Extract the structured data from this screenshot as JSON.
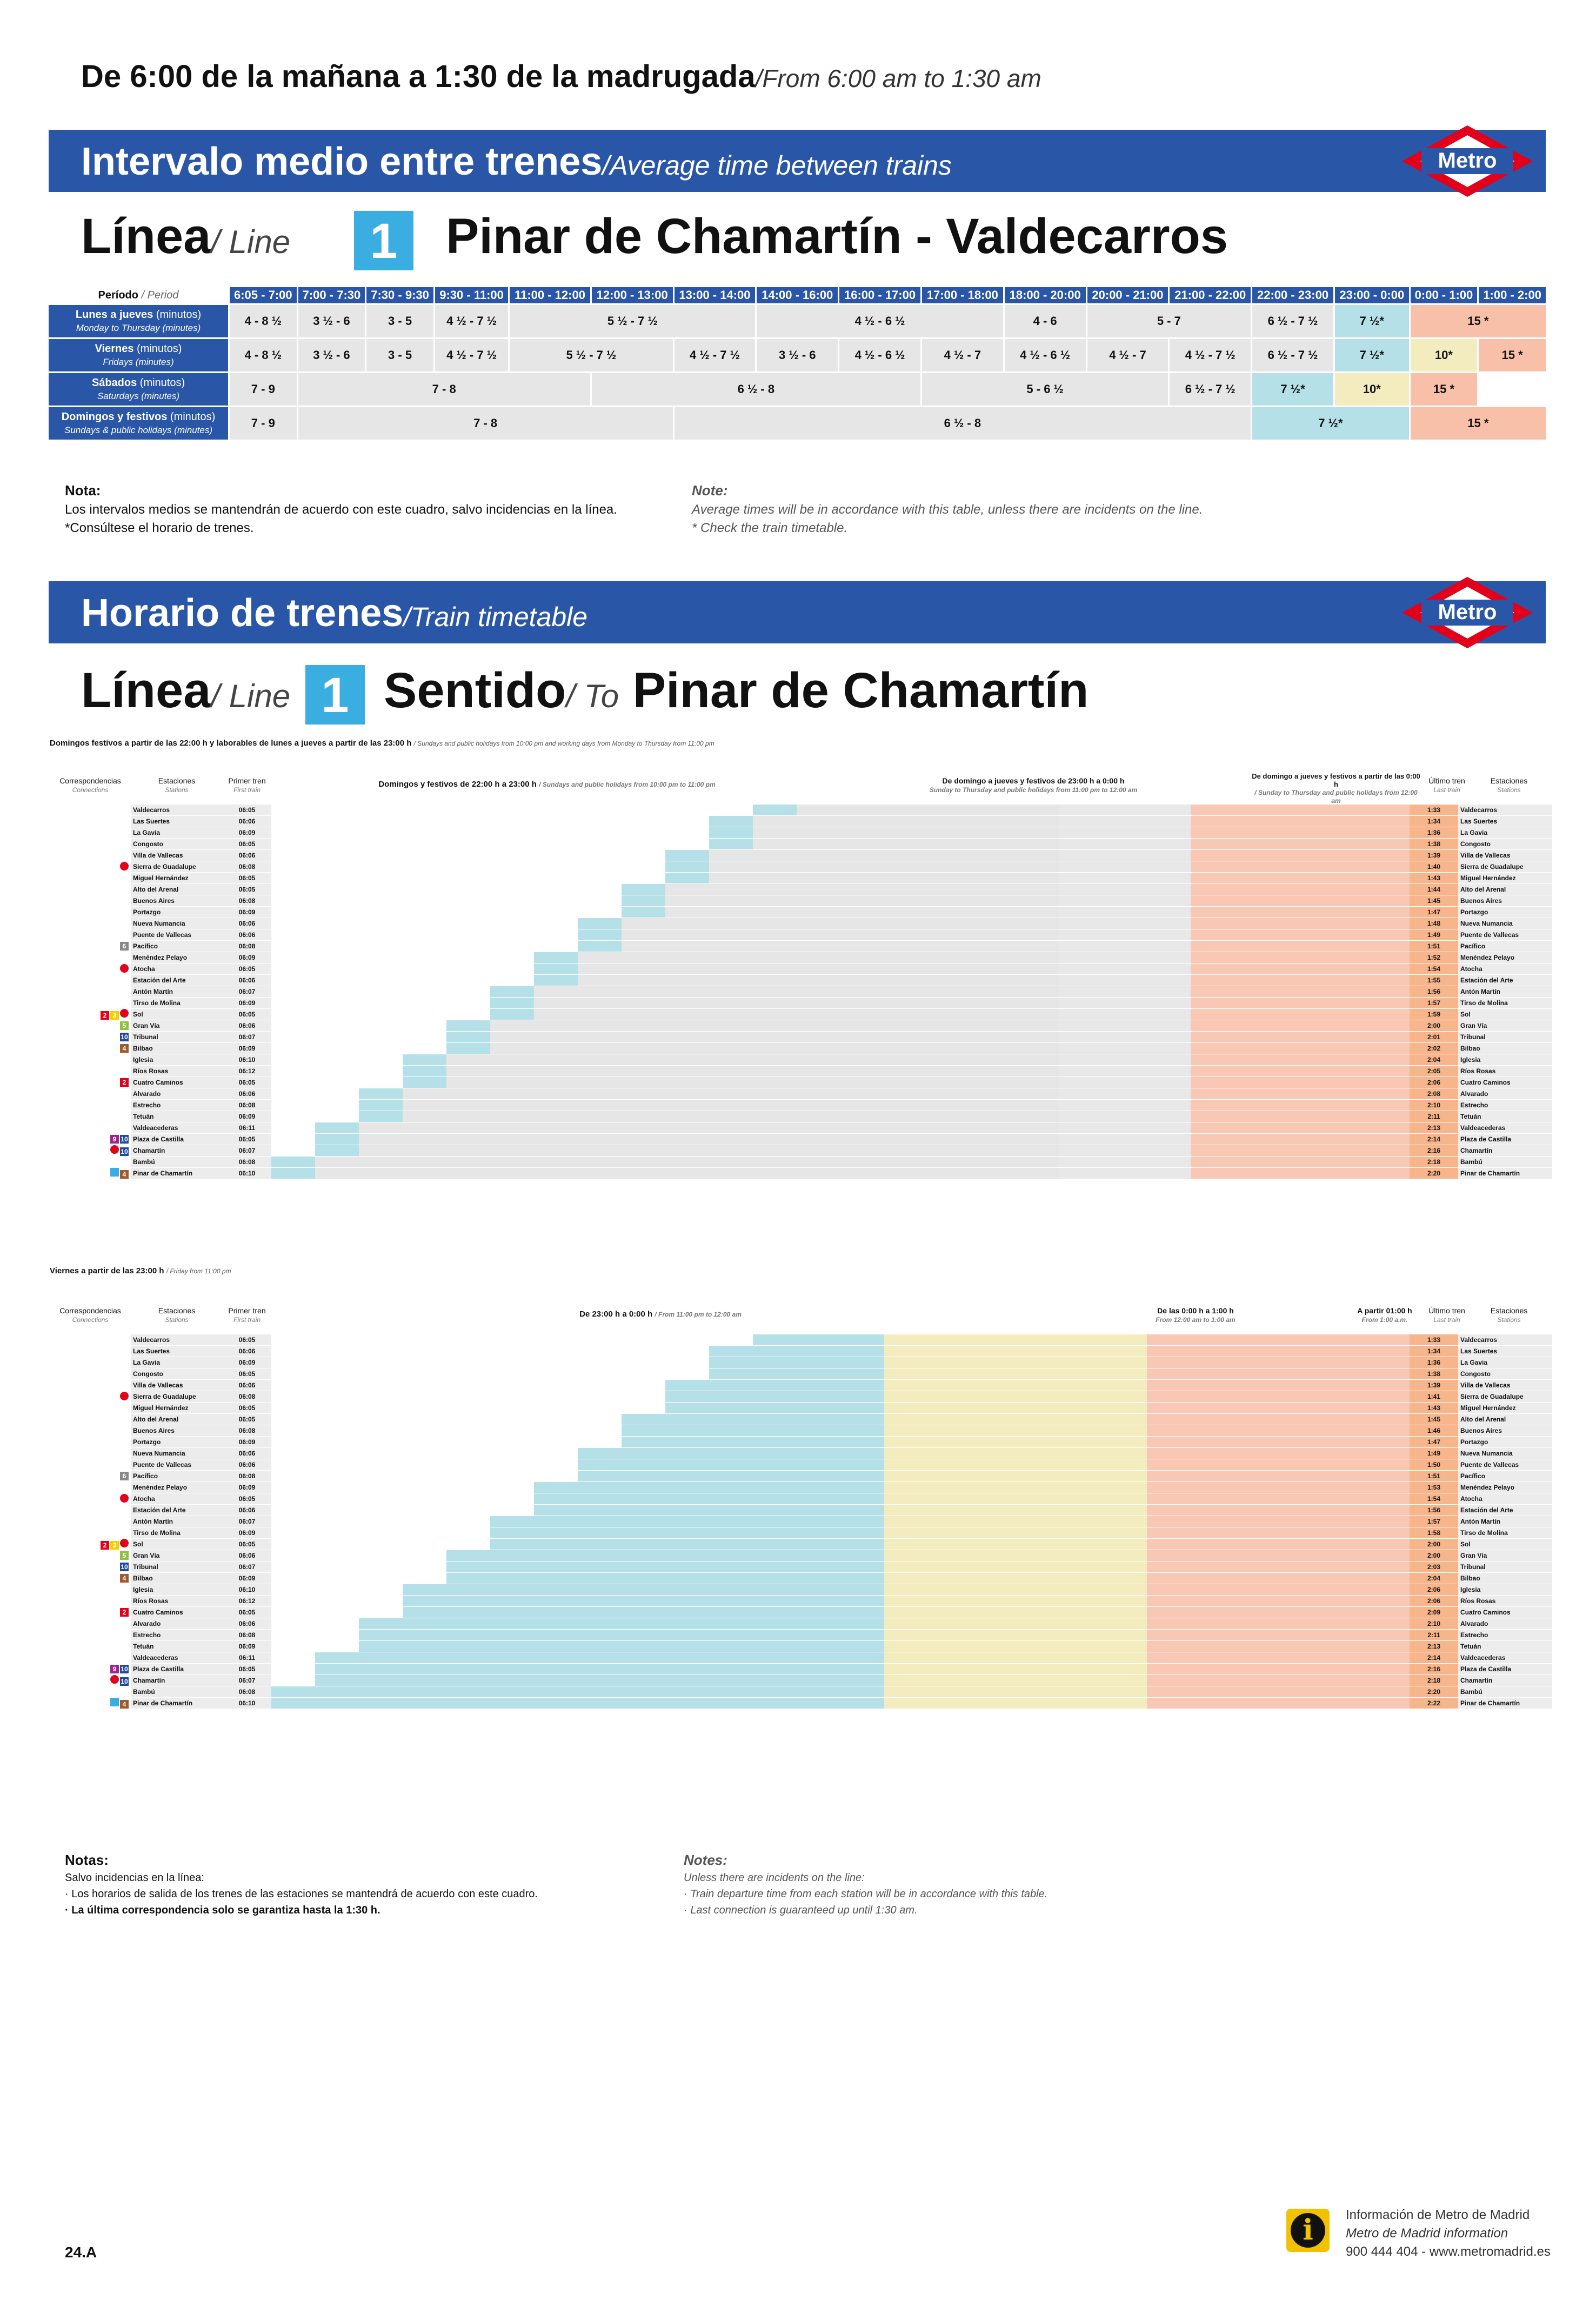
{
  "header": {
    "title_es": "De 6:00 de la mañana a 1:30 de la madrugada",
    "title_en": "/From 6:00 am to 1:30 am"
  },
  "section1": {
    "title_es": "Intervalo medio entre trenes",
    "title_en": "/Average time between trains",
    "logo_text": "Metro",
    "line_label_es": "Línea",
    "line_label_en": "/ Line",
    "line_number": "1",
    "route": "Pinar de Chamartín - Valdecarros",
    "period_header": "Período",
    "period_header_en": "/ Period",
    "time_headers": [
      "6:05 - 7:00",
      "7:00 - 7:30",
      "7:30 - 9:30",
      "9:30 - 11:00",
      "11:00 - 12:00",
      "12:00 - 13:00",
      "13:00 - 14:00",
      "14:00 - 16:00",
      "16:00 - 17:00",
      "17:00 - 18:00",
      "18:00 - 20:00",
      "20:00 - 21:00",
      "21:00 - 22:00",
      "22:00 - 23:00",
      "23:00 - 0:00",
      "0:00 - 1:00",
      "1:00 - 2:00"
    ],
    "rows": [
      {
        "label": "Lunes a jueves",
        "unit": "(minutos)",
        "label_en": "Monday to Thursday (minutes)",
        "cells": [
          [
            "4 - 8 ½",
            1,
            ""
          ],
          [
            "3 ½ - 6",
            1,
            ""
          ],
          [
            "3 - 5",
            1,
            ""
          ],
          [
            "4 ½ - 7 ½",
            1,
            ""
          ],
          [
            "5 ½ - 7 ½",
            3,
            ""
          ],
          [
            "4 ½ - 6 ½",
            3,
            ""
          ],
          [
            "4 - 6",
            1,
            ""
          ],
          [
            "5 - 7",
            2,
            ""
          ],
          [
            "6 ½ - 7 ½",
            1,
            ""
          ],
          [
            "7 ½*",
            1,
            "blue"
          ],
          [
            "15 *",
            2,
            "sal"
          ]
        ]
      },
      {
        "label": "Viernes",
        "unit": "(minutos)",
        "label_en": "Fridays (minutes)",
        "cells": [
          [
            "4 - 8 ½",
            1,
            ""
          ],
          [
            "3 ½ - 6",
            1,
            ""
          ],
          [
            "3 - 5",
            1,
            ""
          ],
          [
            "4 ½ - 7 ½",
            1,
            ""
          ],
          [
            "5 ½ - 7 ½",
            2,
            ""
          ],
          [
            "4 ½ - 7 ½",
            1,
            ""
          ],
          [
            "3 ½ - 6",
            1,
            ""
          ],
          [
            "4 ½ - 6 ½",
            1,
            ""
          ],
          [
            "4 ½ - 7",
            1,
            ""
          ],
          [
            "4 ½ - 6 ½",
            1,
            ""
          ],
          [
            "4 ½ - 7",
            1,
            ""
          ],
          [
            "4 ½ - 7 ½",
            1,
            ""
          ],
          [
            "6 ½ - 7 ½",
            1,
            ""
          ],
          [
            "7 ½*",
            1,
            "blue"
          ],
          [
            "10*",
            1,
            "yel"
          ],
          [
            "15 *",
            1,
            "sal"
          ]
        ]
      },
      {
        "label": "Sábados",
        "unit": "(minutos)",
        "label_en": "Saturdays (minutes)",
        "cells": [
          [
            "7 - 9",
            1,
            ""
          ],
          [
            "7 - 8",
            4,
            ""
          ],
          [
            "6 ½ - 8",
            4,
            ""
          ],
          [
            "5 - 6 ½",
            3,
            ""
          ],
          [
            "6 ½ - 7 ½",
            1,
            ""
          ],
          [
            "7 ½*",
            1,
            "blue"
          ],
          [
            "10*",
            1,
            "yel"
          ],
          [
            "15 *",
            1,
            "sal"
          ]
        ]
      },
      {
        "label": "Domingos y festivos",
        "unit": "(minutos)",
        "label_en": "Sundays & public holidays (minutes)",
        "cells": [
          [
            "7 - 9",
            1,
            ""
          ],
          [
            "7 - 8",
            5,
            ""
          ],
          [
            "6 ½ - 8",
            7,
            ""
          ],
          [
            "7 ½*",
            2,
            "blue"
          ],
          [
            "15 *",
            2,
            "sal"
          ]
        ]
      }
    ],
    "note_title": "Nota:",
    "note_lines": [
      "Los intervalos medios se mantendrán de acuerdo con este cuadro, salvo incidencias en la línea.",
      "*Consúltese el horario de trenes."
    ],
    "note_title_en": "Note:",
    "note_lines_en": [
      "Average times will be in accordance with this table, unless there are incidents on the line.",
      "* Check the train timetable."
    ]
  },
  "section2": {
    "title_es": "Horario de trenes",
    "title_en": "/Train timetable",
    "logo_text": "Metro",
    "line_label_es": "Línea",
    "line_label_en": "/ Line",
    "line_number": "1",
    "dir_label_es": "Sentido",
    "dir_label_en": "/ To",
    "destination": "Pinar de Chamartín",
    "table1_caption": "Domingos festivos a partir de las 22:00 h y laborables de lunes a jueves a partir de las 23:00 h",
    "table1_caption_en": "/ Sundays and public holidays from 10:00 pm and working days from Monday to Thursday from 11:00 pm",
    "t1_headers": {
      "conn": "Correspondencias",
      "conn_en": "Connections",
      "stations": "Estaciones",
      "stations_en": "Stations",
      "first": "Primer tren",
      "first_en": "First train",
      "mid": "Domingos y festivos de 22:00 h a 23:00 h",
      "mid_en": "/ Sundays and public holidays from 10:00 pm to 11:00 pm",
      "mid2": "De domingo a jueves y festivos de 23:00 h a 0:00 h",
      "mid2_en": "Sunday to Thursday and public holidays from 11:00 pm to 12:00 am",
      "right": "De domingo a jueves y festivos a partir de las 0:00 h",
      "right_en": "/ Sunday to Thursday and public holidays from 12:00 am",
      "last": "Último tren",
      "last_en": "Last train"
    },
    "table2_caption": "Viernes a partir de las 23:00 h",
    "table2_caption_en": "/ Friday from 11:00 pm",
    "t2_headers": {
      "mid": "De 23:00 h a 0:00 h",
      "mid_en": "/ From 11:00 pm to 12:00 am",
      "mid2": "De las 0:00 h a 1:00 h",
      "mid2_en": "From 12:00 am to 1:00 am",
      "right": "A partir 01:00 h",
      "right_en": "From 1:00 a.m."
    },
    "stations": [
      {
        "name": "Valdecarros",
        "first": "06:05",
        "last": "1:33",
        "conn": ""
      },
      {
        "name": "Las Suertes",
        "first": "06:06",
        "last": "1:34",
        "conn": ""
      },
      {
        "name": "La Gavia",
        "first": "06:09",
        "last": "1:36",
        "conn": ""
      },
      {
        "name": "Congosto",
        "first": "06:05",
        "last": "1:38",
        "conn": ""
      },
      {
        "name": "Villa de Vallecas",
        "first": "06:06",
        "last": "1:39",
        "conn": ""
      },
      {
        "name": "Sierra de Guadalupe",
        "first": "06:08",
        "last": "1:40",
        "conn": "C"
      },
      {
        "name": "Miguel Hernández",
        "first": "06:05",
        "last": "1:43",
        "conn": ""
      },
      {
        "name": "Alto del Arenal",
        "first": "06:05",
        "last": "1:44",
        "conn": ""
      },
      {
        "name": "Buenos Aires",
        "first": "06:08",
        "last": "1:45",
        "conn": ""
      },
      {
        "name": "Portazgo",
        "first": "06:09",
        "last": "1:47",
        "conn": ""
      },
      {
        "name": "Nueva Numancia",
        "first": "06:06",
        "last": "1:48",
        "conn": ""
      },
      {
        "name": "Puente de Vallecas",
        "first": "06:06",
        "last": "1:49",
        "conn": ""
      },
      {
        "name": "Pacífico",
        "first": "06:08",
        "last": "1:51",
        "conn": "6"
      },
      {
        "name": "Menéndez Pelayo",
        "first": "06:09",
        "last": "1:52",
        "conn": ""
      },
      {
        "name": "Atocha",
        "first": "06:05",
        "last": "1:54",
        "conn": "C"
      },
      {
        "name": "Estación del Arte",
        "first": "06:06",
        "last": "1:55",
        "conn": ""
      },
      {
        "name": "Antón Martín",
        "first": "06:07",
        "last": "1:56",
        "conn": ""
      },
      {
        "name": "Tirso de Molina",
        "first": "06:09",
        "last": "1:57",
        "conn": ""
      },
      {
        "name": "Sol",
        "first": "06:05",
        "last": "1:59",
        "conn": "2 3 C"
      },
      {
        "name": "Gran Vía",
        "first": "06:06",
        "last": "2:00",
        "conn": "5"
      },
      {
        "name": "Tribunal",
        "first": "06:07",
        "last": "2:01",
        "conn": "10"
      },
      {
        "name": "Bilbao",
        "first": "06:09",
        "last": "2:02",
        "conn": "4"
      },
      {
        "name": "Iglesia",
        "first": "06:10",
        "last": "2:04",
        "conn": ""
      },
      {
        "name": "Ríos Rosas",
        "first": "06:12",
        "last": "2:05",
        "conn": ""
      },
      {
        "name": "Cuatro Caminos",
        "first": "06:05",
        "last": "2:06",
        "conn": "2"
      },
      {
        "name": "Alvarado",
        "first": "06:06",
        "last": "2:08",
        "conn": ""
      },
      {
        "name": "Estrecho",
        "first": "06:08",
        "last": "2:10",
        "conn": ""
      },
      {
        "name": "Tetuán",
        "first": "06:09",
        "last": "2:11",
        "conn": ""
      },
      {
        "name": "Valdeacederas",
        "first": "06:11",
        "last": "2:13",
        "conn": ""
      },
      {
        "name": "Plaza de Castilla",
        "first": "06:05",
        "last": "2:14",
        "conn": "9 10"
      },
      {
        "name": "Chamartín",
        "first": "06:07",
        "last": "2:16",
        "conn": "C 10"
      },
      {
        "name": "Bambú",
        "first": "06:08",
        "last": "2:18",
        "conn": ""
      },
      {
        "name": "Pinar de Chamartín",
        "first": "06:10",
        "last": "2:20",
        "conn": "ML1 4"
      }
    ],
    "t2_last": [
      "1:33",
      "1:34",
      "1:36",
      "1:38",
      "1:39",
      "1:41",
      "1:43",
      "1:45",
      "1:46",
      "1:47",
      "1:49",
      "1:50",
      "1:51",
      "1:53",
      "1:54",
      "1:56",
      "1:57",
      "1:58",
      "2:00",
      "2:00",
      "2:03",
      "2:04",
      "2:06",
      "2:06",
      "2:09",
      "2:10",
      "2:11",
      "2:13",
      "2:14",
      "2:16",
      "2:18",
      "2:20",
      "2:22"
    ],
    "notes_title": "Notas:",
    "notes_intro": "Salvo incidencias en la línea:",
    "notes": [
      "· Los horarios de salida de los trenes de las estaciones se mantendrá de acuerdo con este cuadro.",
      "· La última correspondencia solo se garantiza hasta la 1:30 h."
    ],
    "notes_title_en": "Notes:",
    "notes_intro_en": "Unless there are incidents on the line:",
    "notes_en": [
      "· Train departure time from each station will be in accordance with this table.",
      "· Last connection is guaranteed up until 1:30 am."
    ]
  },
  "footer": {
    "page_code": "24.A",
    "info_title": "Información de Metro de Madrid",
    "info_en": "Metro de Madrid information",
    "info_contact": "900 444 404 - www.metromadrid.es"
  },
  "colors": {
    "brand_blue": "#2a56a8",
    "metro_red": "#e2001a",
    "line1": "#3aaee0",
    "blue_cell": "#b6e0e8",
    "yellow_cell": "#f3ecbf",
    "salmon_cell": "#f8c0a8"
  }
}
